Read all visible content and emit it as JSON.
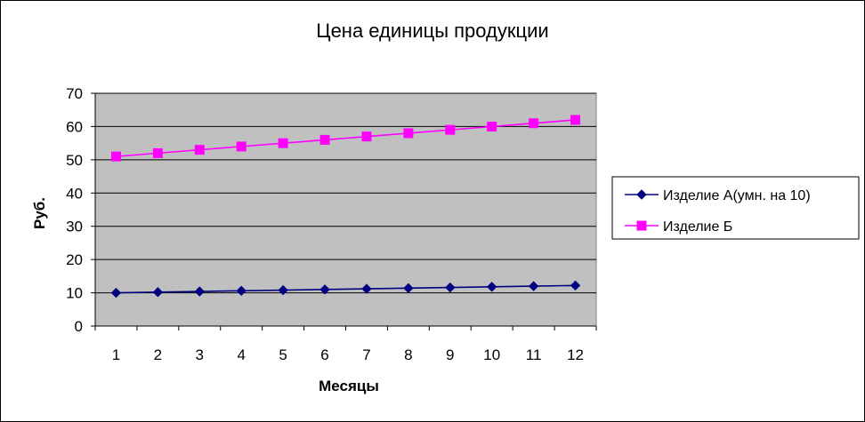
{
  "chart_data": {
    "type": "line",
    "title": "Цена единицы продукции",
    "xlabel": "Месяцы",
    "ylabel": "Руб.",
    "categories": [
      "1",
      "2",
      "3",
      "4",
      "5",
      "6",
      "7",
      "8",
      "9",
      "10",
      "11",
      "12"
    ],
    "ylim": [
      0,
      70
    ],
    "yticks": [
      0,
      10,
      20,
      30,
      40,
      50,
      60,
      70
    ],
    "grid": true,
    "legend_position": "right",
    "plot_background": "#c0c0c0",
    "series": [
      {
        "name": "Изделие А(умн. на 10)",
        "color": "#000080",
        "marker": "diamond",
        "values": [
          10,
          10.2,
          10.4,
          10.6,
          10.8,
          11.0,
          11.2,
          11.4,
          11.6,
          11.8,
          12.0,
          12.2
        ]
      },
      {
        "name": "Изделие Б",
        "color": "#ff00ff",
        "marker": "square",
        "values": [
          51,
          52,
          53,
          54,
          55,
          56,
          57,
          58,
          59,
          60,
          61,
          62
        ]
      }
    ]
  }
}
